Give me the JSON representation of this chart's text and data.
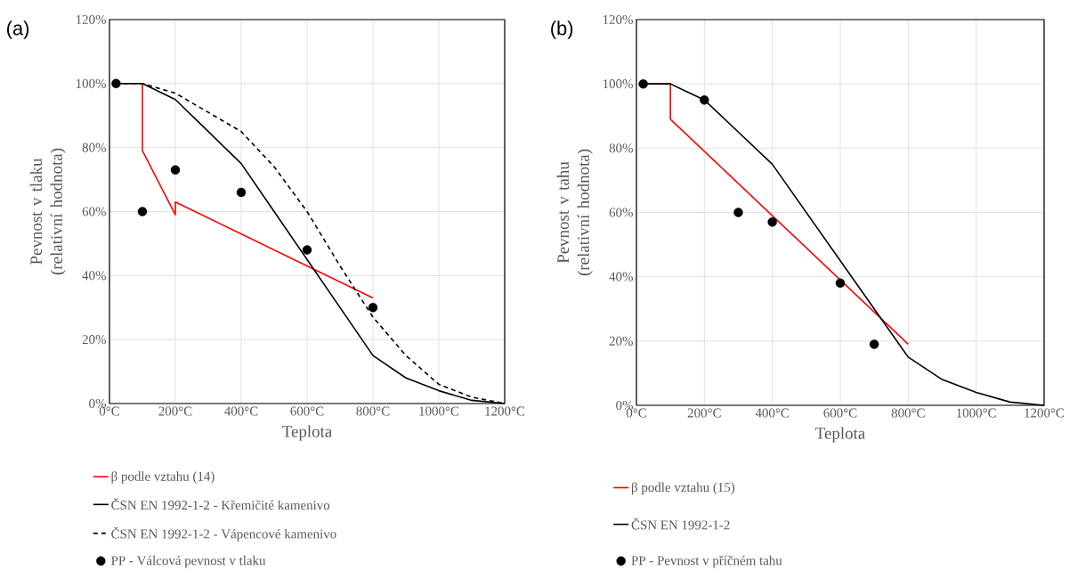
{
  "chart_data": [
    {
      "type": "line",
      "annotations": [
        "(a)"
      ],
      "xlabel": "Teplota",
      "ylabel": "Pevnost v tlaku (relativní hodnota)",
      "xlim": [
        0,
        1200
      ],
      "ylim": [
        0,
        120
      ],
      "xticks": [
        {
          "value": 0,
          "label": "0°C"
        },
        {
          "value": 200,
          "label": "200°C"
        },
        {
          "value": 400,
          "label": "400°C"
        },
        {
          "value": 600,
          "label": "600°C"
        },
        {
          "value": 800,
          "label": "800°C"
        },
        {
          "value": 1000,
          "label": "1000°C"
        },
        {
          "value": 1200,
          "label": "1200°C"
        }
      ],
      "yticks": [
        {
          "value": 0,
          "label": "0%"
        },
        {
          "value": 20,
          "label": "20%"
        },
        {
          "value": 40,
          "label": "40%"
        },
        {
          "value": 60,
          "label": "60%"
        },
        {
          "value": 80,
          "label": "80%"
        },
        {
          "value": 100,
          "label": "100%"
        },
        {
          "value": 120,
          "label": "120%"
        }
      ],
      "grid": true,
      "legend": "bottom",
      "marker": "none",
      "line_style": "solid",
      "series": [
        {
          "name": "β podle vztahu (14)",
          "color": "#ff0000",
          "x": [
            20,
            100,
            100,
            200,
            200,
            800
          ],
          "values": [
            100,
            100,
            79,
            59,
            63,
            33
          ]
        },
        {
          "name": "ČSN EN 1992-1-2 - Křemičité kamenivo",
          "color": "#000000",
          "x": [
            20,
            100,
            200,
            300,
            400,
            500,
            600,
            700,
            800,
            900,
            1000,
            1100,
            1200
          ],
          "values": [
            100,
            100,
            95,
            85,
            75,
            60,
            45,
            30,
            15,
            8,
            4,
            1,
            0
          ]
        },
        {
          "name": "ČSN EN 1992-1-2 - Vápencové kamenivo",
          "color": "#000000",
          "line_style": "dashed",
          "x": [
            20,
            100,
            200,
            300,
            400,
            500,
            600,
            700,
            800,
            900,
            1000,
            1100,
            1200
          ],
          "values": [
            100,
            100,
            97,
            91,
            85,
            74,
            60,
            43,
            27,
            15,
            6,
            2,
            0
          ]
        },
        {
          "name": "PP - Válcová pevnost v tlaku",
          "type": "scatter",
          "marker": "circle",
          "color": "#000000",
          "x": [
            20,
            100,
            200,
            400,
            600,
            800
          ],
          "values": [
            100,
            60,
            73,
            66,
            48,
            30
          ]
        }
      ]
    },
    {
      "type": "line",
      "annotations": [
        "(b)"
      ],
      "xlabel": "Teplota",
      "ylabel": "Pevnost v tahu (relativní hodnota)",
      "xlim": [
        0,
        1200
      ],
      "ylim": [
        0,
        120
      ],
      "xticks": [
        {
          "value": 0,
          "label": "0°C"
        },
        {
          "value": 200,
          "label": "200°C"
        },
        {
          "value": 400,
          "label": "400°C"
        },
        {
          "value": 600,
          "label": "600°C"
        },
        {
          "value": 800,
          "label": "800°C"
        },
        {
          "value": 1000,
          "label": "1000°C"
        },
        {
          "value": 1200,
          "label": "1200°C"
        }
      ],
      "yticks": [
        {
          "value": 0,
          "label": "0%"
        },
        {
          "value": 20,
          "label": "20%"
        },
        {
          "value": 40,
          "label": "40%"
        },
        {
          "value": 60,
          "label": "60%"
        },
        {
          "value": 80,
          "label": "80%"
        },
        {
          "value": 100,
          "label": "100%"
        },
        {
          "value": 120,
          "label": "120%"
        }
      ],
      "grid": true,
      "legend": "bottom",
      "marker": "none",
      "line_style": "solid",
      "series": [
        {
          "name": "β podle vztahu (15)",
          "color": "#ff0000",
          "x": [
            20,
            100,
            100,
            800
          ],
          "values": [
            100,
            100,
            89,
            19
          ]
        },
        {
          "name": "ČSN EN 1992-1-2",
          "color": "#000000",
          "x": [
            20,
            100,
            200,
            300,
            400,
            500,
            600,
            700,
            800,
            900,
            1000,
            1100,
            1200
          ],
          "values": [
            100,
            100,
            95,
            85,
            75,
            60,
            45,
            30,
            15,
            8,
            4,
            1,
            0
          ]
        },
        {
          "name": "PP - Pevnost v příčném tahu",
          "type": "scatter",
          "marker": "circle",
          "color": "#000000",
          "x": [
            20,
            200,
            300,
            400,
            600,
            700
          ],
          "values": [
            100,
            95,
            60,
            57,
            38,
            19
          ]
        }
      ]
    }
  ]
}
